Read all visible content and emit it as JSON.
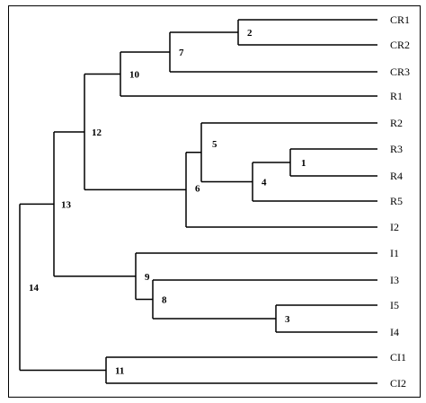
{
  "diagram": {
    "type": "dendrogram",
    "leaves": [
      {
        "id": "CR1",
        "label": "CR1"
      },
      {
        "id": "CR2",
        "label": "CR2"
      },
      {
        "id": "CR3",
        "label": "CR3"
      },
      {
        "id": "R1",
        "label": "R1"
      },
      {
        "id": "R2",
        "label": "R2"
      },
      {
        "id": "R3",
        "label": "R3"
      },
      {
        "id": "R4",
        "label": "R4"
      },
      {
        "id": "R5",
        "label": "R5"
      },
      {
        "id": "I2",
        "label": "I2"
      },
      {
        "id": "I1",
        "label": "I1"
      },
      {
        "id": "I3",
        "label": "I3"
      },
      {
        "id": "I5",
        "label": "I5"
      },
      {
        "id": "I4",
        "label": "I4"
      },
      {
        "id": "CI1",
        "label": "CI1"
      },
      {
        "id": "CI2",
        "label": "CI2"
      }
    ],
    "clusters": [
      {
        "id": "n1",
        "label": "1",
        "children": [
          "R3",
          "R4"
        ]
      },
      {
        "id": "n2",
        "label": "2",
        "children": [
          "CR1",
          "CR2"
        ]
      },
      {
        "id": "n3",
        "label": "3",
        "children": [
          "I5",
          "I4"
        ]
      },
      {
        "id": "n4",
        "label": "4",
        "children": [
          "n1",
          "R5"
        ]
      },
      {
        "id": "n5",
        "label": "5",
        "children": [
          "R2",
          "n4"
        ]
      },
      {
        "id": "n6",
        "label": "6",
        "children": [
          "n5",
          "I2"
        ]
      },
      {
        "id": "n7",
        "label": "7",
        "children": [
          "n2",
          "CR3"
        ]
      },
      {
        "id": "n8",
        "label": "8",
        "children": [
          "I3",
          "n3"
        ]
      },
      {
        "id": "n9",
        "label": "9",
        "children": [
          "I1",
          "n8"
        ]
      },
      {
        "id": "n10",
        "label": "10",
        "children": [
          "n7",
          "R1"
        ]
      },
      {
        "id": "n11",
        "label": "11",
        "children": [
          "CI1",
          "CI2"
        ]
      },
      {
        "id": "n12",
        "label": "12",
        "children": [
          "n10",
          "n6"
        ]
      },
      {
        "id": "n13",
        "label": "13",
        "children": [
          "n12",
          "n9"
        ]
      },
      {
        "id": "n14",
        "label": "14",
        "children": [
          "n13",
          "n11"
        ]
      }
    ]
  }
}
